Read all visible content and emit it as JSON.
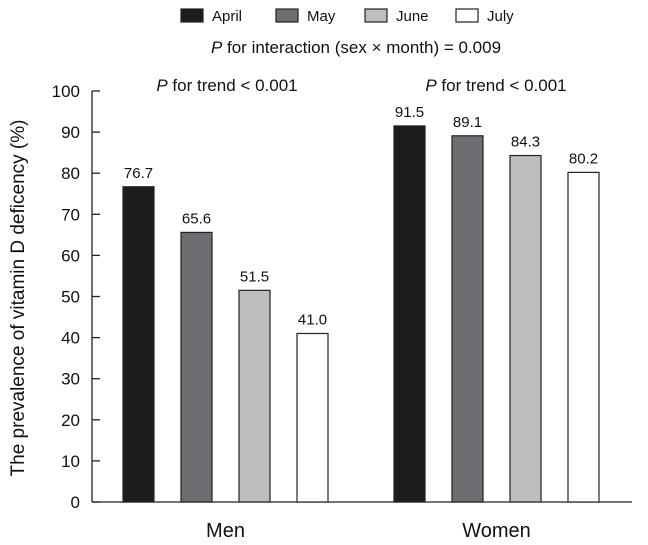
{
  "chart_data": {
    "type": "bar",
    "categories": [
      "Men",
      "Women"
    ],
    "series": [
      {
        "name": "April",
        "values": [
          76.7,
          91.5
        ],
        "color": "#1c1c1c"
      },
      {
        "name": "May",
        "values": [
          65.6,
          89.1
        ],
        "color": "#6d6e71"
      },
      {
        "name": "June",
        "values": [
          51.5,
          84.3
        ],
        "color": "#bcbec0"
      },
      {
        "name": "July",
        "values": [
          41.0,
          80.2
        ],
        "color": "#ffffff"
      }
    ],
    "value_labels": [
      [
        "76.7",
        "91.5"
      ],
      [
        "65.6",
        "89.1"
      ],
      [
        "51.5",
        "84.3"
      ],
      [
        "41.0",
        "80.2"
      ]
    ],
    "ylabel": "The prevalence of vitamin D deficency (%)",
    "xlabel": "",
    "ylim": [
      0,
      100
    ],
    "yticks": [
      "0",
      "10",
      "20",
      "30",
      "40",
      "50",
      "60",
      "70",
      "80",
      "90",
      "100"
    ],
    "legend_position": "top",
    "interaction_annotation": {
      "p": "P",
      "text": " for interaction (sex × month) = 0.009"
    },
    "trend_annotations": [
      {
        "p": "P",
        "text": " for trend < 0.001"
      },
      {
        "p": "P",
        "text": " for trend < 0.001"
      }
    ],
    "grid": false
  }
}
